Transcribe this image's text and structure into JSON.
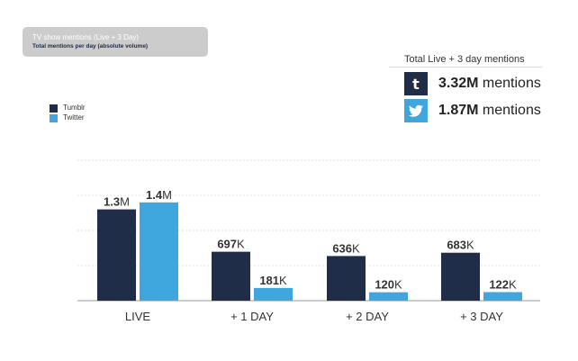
{
  "header": {
    "title": "TV show mentions (Live + 3 Day)",
    "subtitle": "Total mentions per day (absolute volume)"
  },
  "totals": {
    "heading": "Total Live + 3 day mentions",
    "tumblr": {
      "icon": "tumblr-icon",
      "value": "3.32M",
      "unit": "mentions"
    },
    "twitter": {
      "icon": "twitter-icon",
      "value": "1.87M",
      "unit": "mentions"
    }
  },
  "colors": {
    "tumblr": "#1f2d48",
    "twitter": "#3fa7dd",
    "grid": "#e4e4e4",
    "axis": "#9a9a9a"
  },
  "chart_data": {
    "type": "bar",
    "categories": [
      "LIVE",
      "+ 1 DAY",
      "+ 2 DAY",
      "+ 3 DAY"
    ],
    "series": [
      {
        "name": "Tumblr",
        "values": [
          1300000,
          697000,
          636000,
          683000
        ],
        "labels": [
          [
            "1.3",
            "M"
          ],
          [
            "697",
            "K"
          ],
          [
            "636",
            "K"
          ],
          [
            "683",
            "K"
          ]
        ]
      },
      {
        "name": "Twitter",
        "values": [
          1400000,
          181000,
          120000,
          122000
        ],
        "labels": [
          [
            "1.4",
            "M"
          ],
          [
            "181",
            "K"
          ],
          [
            "120",
            "K"
          ],
          [
            "122",
            "K"
          ]
        ]
      }
    ],
    "ylim": [
      0,
      2000000
    ],
    "grid": true,
    "legend": "top-left"
  }
}
